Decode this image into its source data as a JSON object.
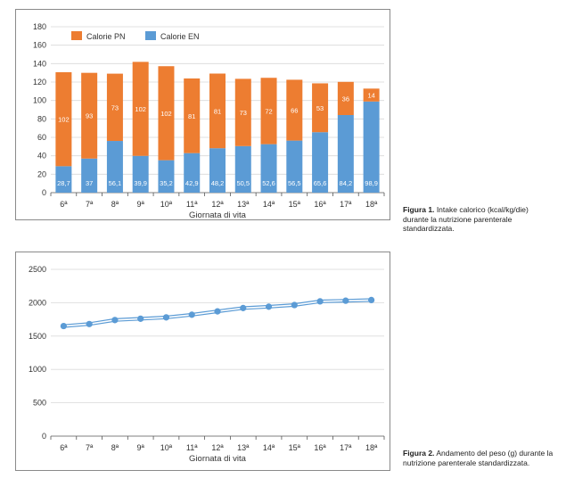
{
  "chart_data": [
    {
      "type": "bar",
      "stacked": true,
      "categories": [
        "6ª",
        "7ª",
        "8ª",
        "9ª",
        "10ª",
        "11ª",
        "12ª",
        "13ª",
        "14ª",
        "15ª",
        "16ª",
        "17ª",
        "18ª"
      ],
      "series": [
        {
          "name": "Calorie EN",
          "color": "#5b9bd5",
          "values": [
            28.7,
            37,
            56.1,
            39.9,
            35.2,
            42.9,
            48.2,
            50.5,
            52.6,
            56.5,
            65.6,
            84.2,
            98.9
          ],
          "labels": [
            "28,7",
            "37",
            "56,1",
            "39,9",
            "35,2",
            "42,9",
            "48,2",
            "50,5",
            "52,6",
            "56,5",
            "65,6",
            "84,2",
            "98,9"
          ]
        },
        {
          "name": "Calorie PN",
          "color": "#ed7d31",
          "values": [
            102,
            93,
            73,
            102,
            102,
            81,
            81,
            73,
            72,
            66,
            53,
            36,
            14
          ],
          "labels": [
            "102",
            "93",
            "73",
            "102",
            "102",
            "81",
            "81",
            "73",
            "72",
            "66",
            "53",
            "36",
            "14"
          ]
        }
      ],
      "legend_order": [
        "Calorie PN",
        "Calorie EN"
      ],
      "legend_position": "top-left",
      "xlabel": "Giornata di vita",
      "ylabel": "",
      "ylim": [
        0,
        180
      ],
      "yticks": [
        0,
        20,
        40,
        60,
        80,
        100,
        120,
        140,
        160,
        180
      ],
      "grid": true
    },
    {
      "type": "line",
      "categories": [
        "6ª",
        "7ª",
        "8ª",
        "9ª",
        "10ª",
        "11ª",
        "12ª",
        "13ª",
        "14ª",
        "15ª",
        "16ª",
        "17ª",
        "18ª"
      ],
      "series": [
        {
          "color": "#5b9bd5",
          "values": [
            1650,
            1680,
            1740,
            1760,
            1780,
            1820,
            1870,
            1920,
            1940,
            1965,
            2020,
            2030,
            2040
          ]
        }
      ],
      "xlabel": "Giornata di vita",
      "ylabel": "",
      "ylim": [
        0,
        2500
      ],
      "yticks": [
        0,
        500,
        1000,
        1500,
        2000,
        2500
      ],
      "grid": true
    }
  ],
  "captions": {
    "fig1_label": "Figura 1.",
    "fig1_text": "Intake calorico (kcal/kg/die) durante la nutrizione parenterale standardizzata.",
    "fig2_label": "Figura 2.",
    "fig2_text": "Andamento del peso (g) durante la nutrizione parenterale standardizzata."
  }
}
